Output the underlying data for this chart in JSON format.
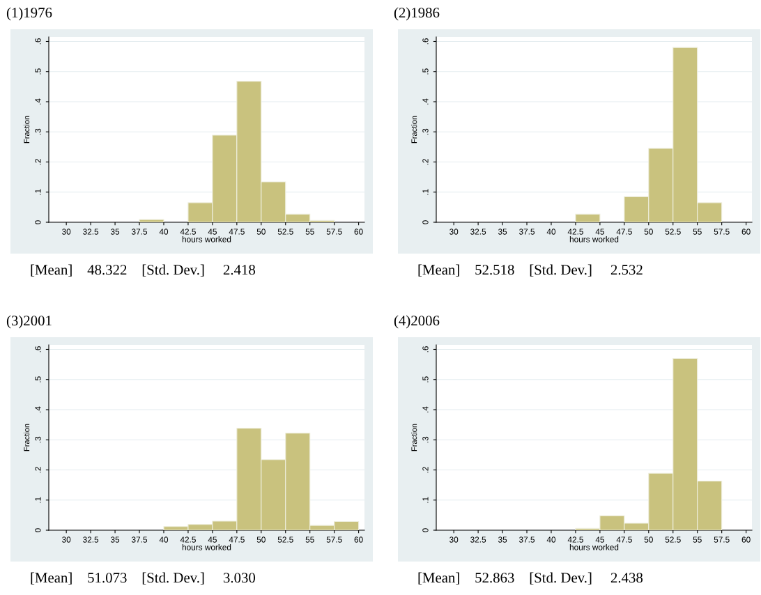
{
  "chart_data": [
    {
      "type": "histogram",
      "title": "(1)1976",
      "xlabel": "hours worked",
      "ylabel": "Fraction",
      "color": "#c9c27e",
      "grid": "y",
      "bins": [
        30,
        32.5,
        35,
        37.5,
        40,
        42.5,
        45,
        47.5,
        50,
        52.5,
        55,
        57.5,
        60
      ],
      "values": [
        0,
        0,
        null,
        0.009,
        0,
        0.065,
        0.289,
        0.468,
        0.134,
        0.027,
        0.006,
        0
      ],
      "xlim": [
        28.2,
        60.6
      ],
      "xticks": [
        30,
        32.5,
        35,
        37.5,
        40,
        42.5,
        45,
        47.5,
        50,
        52.5,
        55,
        57.5,
        60
      ],
      "ylim": [
        0,
        0.615
      ],
      "yticks": [
        0,
        {
          "value": 0.1,
          "label": ".1"
        },
        {
          "value": 0.2,
          "label": ".2"
        },
        {
          "value": 0.3,
          "label": ".3"
        },
        {
          "value": 0.4,
          "label": ".4"
        },
        {
          "value": 0.5,
          "label": ".5"
        },
        {
          "value": 0.6,
          "label": ".6"
        }
      ],
      "annotations": [
        "[Mean]    48.322    [Std. Dev.]     2.418"
      ]
    },
    {
      "type": "histogram",
      "title": "(2)1986",
      "xlabel": "hours worked",
      "ylabel": "Fraction",
      "color": "#c9c27e",
      "grid": "y",
      "bins": [
        30,
        32.5,
        35,
        37.5,
        40,
        42.5,
        45,
        47.5,
        50,
        52.5,
        55,
        57.5,
        60
      ],
      "values": [
        0,
        0,
        null,
        0,
        0,
        0.027,
        null,
        0.085,
        0.245,
        0.58,
        0.065,
        0
      ],
      "xlim": [
        28.2,
        60.6
      ],
      "xticks": [
        30,
        32.5,
        35,
        37.5,
        40,
        42.5,
        45,
        47.5,
        50,
        52.5,
        55,
        57.5,
        60
      ],
      "ylim": [
        0,
        0.615
      ],
      "yticks": [
        0,
        {
          "value": 0.1,
          "label": ".1"
        },
        {
          "value": 0.2,
          "label": ".2"
        },
        {
          "value": 0.3,
          "label": ".3"
        },
        {
          "value": 0.4,
          "label": ".4"
        },
        {
          "value": 0.5,
          "label": ".5"
        },
        {
          "value": 0.6,
          "label": ".6"
        }
      ],
      "annotations": [
        "[Mean]    52.518    [Std. Dev.]     2.532"
      ]
    },
    {
      "type": "histogram",
      "title": "(3)2001",
      "xlabel": "hours worked",
      "ylabel": "Fraction",
      "color": "#c9c27e",
      "grid": "y",
      "bins": [
        30,
        32.5,
        35,
        37.5,
        40,
        42.5,
        45,
        47.5,
        50,
        52.5,
        55,
        57.5,
        60
      ],
      "values": [
        0,
        0,
        0,
        0,
        0.012,
        0.019,
        0.03,
        0.338,
        0.234,
        0.322,
        0.016,
        0.029
      ],
      "xlim": [
        28.2,
        60.6
      ],
      "xticks": [
        30,
        32.5,
        35,
        37.5,
        40,
        42.5,
        45,
        47.5,
        50,
        52.5,
        55,
        57.5,
        60
      ],
      "ylim": [
        0,
        0.615
      ],
      "yticks": [
        0,
        {
          "value": 0.1,
          "label": ".1"
        },
        {
          "value": 0.2,
          "label": ".2"
        },
        {
          "value": 0.3,
          "label": ".3"
        },
        {
          "value": 0.4,
          "label": ".4"
        },
        {
          "value": 0.5,
          "label": ".5"
        },
        {
          "value": 0.6,
          "label": ".6"
        }
      ],
      "annotations": [
        "[Mean]    51.073    [Std. Dev.]     3.030"
      ]
    },
    {
      "type": "histogram",
      "title": "(4)2006",
      "xlabel": "hours worked",
      "ylabel": "Fraction",
      "color": "#c9c27e",
      "grid": "y",
      "bins": [
        30,
        32.5,
        35,
        37.5,
        40,
        42.5,
        45,
        47.5,
        50,
        52.5,
        55,
        57.5,
        60
      ],
      "values": [
        0,
        0,
        0,
        null,
        0,
        0.006,
        0.048,
        0.023,
        0.189,
        0.57,
        0.163,
        0
      ],
      "xlim": [
        28.2,
        60.6
      ],
      "xticks": [
        30,
        32.5,
        35,
        37.5,
        40,
        42.5,
        45,
        47.5,
        50,
        52.5,
        55,
        57.5,
        60
      ],
      "ylim": [
        0,
        0.615
      ],
      "yticks": [
        0,
        {
          "value": 0.1,
          "label": ".1"
        },
        {
          "value": 0.2,
          "label": ".2"
        },
        {
          "value": 0.3,
          "label": ".3"
        },
        {
          "value": 0.4,
          "label": ".4"
        },
        {
          "value": 0.5,
          "label": ".5"
        },
        {
          "value": 0.6,
          "label": ".6"
        }
      ],
      "annotations": [
        "[Mean]    52.863    [Std. Dev.]     2.438"
      ]
    }
  ]
}
